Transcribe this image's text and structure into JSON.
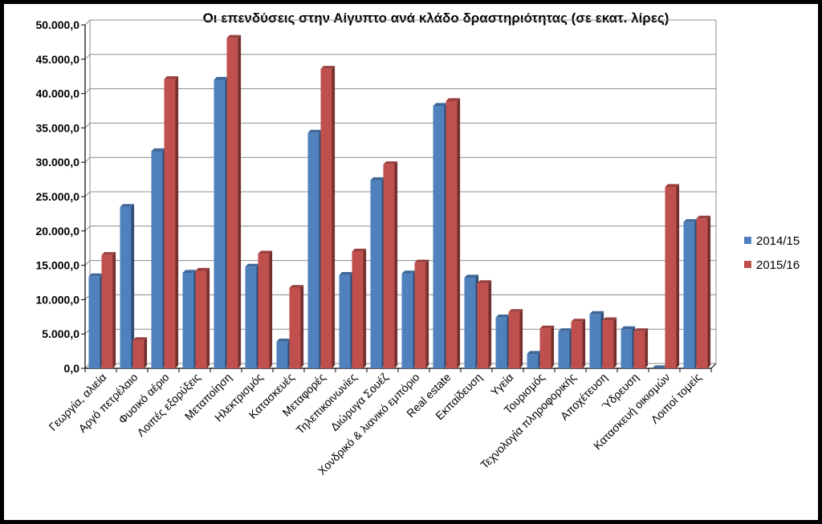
{
  "chart_data": {
    "type": "bar",
    "title": "Οι επενδύσεις στην Αίγυπτο ανά κλάδο δραστηριότητας (σε εκατ. λίρες)",
    "xlabel": "",
    "ylabel": "",
    "ylim": [
      0,
      50000
    ],
    "yticks": [
      0,
      5000,
      10000,
      15000,
      20000,
      25000,
      30000,
      35000,
      40000,
      45000,
      50000
    ],
    "ytick_labels": [
      "0,0",
      "5.000,0",
      "10.000,0",
      "15.000,0",
      "20.000,0",
      "25.000,0",
      "30.000,0",
      "35.000,0",
      "40.000,0",
      "45.000,0",
      "50.000,0"
    ],
    "grid": true,
    "legend_position": "right",
    "categories": [
      "Γεωργία, αλιεία",
      "Αργό πετρέλαιο",
      "Φυσικό αέριο",
      "Λοιπές εξορύξεις",
      "Μεταποίηση",
      "Ηλεκτρισμός",
      "Κατασκευές",
      "Μεταφορές",
      "Τηλεπικοινωνίες",
      "Διώρυγα Σουέζ",
      "Χονδρικό & λιανικό εμπόριο",
      "Real estate",
      "Εκπαίδευση",
      "Υγεία",
      "Τουρισμός",
      "Τεχνολογία πληροφορικής",
      "Αποχέτευση",
      "Ύδρευση",
      "Κατασκευή οικισμών",
      "Λοιποί τομείς"
    ],
    "series": [
      {
        "name": "2014/15",
        "color": "#4F81BD",
        "values": [
          13400,
          23500,
          31600,
          13900,
          42000,
          14800,
          3900,
          34300,
          13600,
          27400,
          13800,
          38200,
          13200,
          7400,
          2100,
          5400,
          7900,
          5700,
          0,
          21300
        ]
      },
      {
        "name": "2015/16",
        "color": "#C0504D",
        "values": [
          16500,
          4100,
          42100,
          14200,
          48100,
          16700,
          11700,
          43600,
          17000,
          29700,
          15400,
          38900,
          12400,
          8200,
          5800,
          6800,
          7000,
          5400,
          26400,
          21800
        ]
      }
    ]
  }
}
